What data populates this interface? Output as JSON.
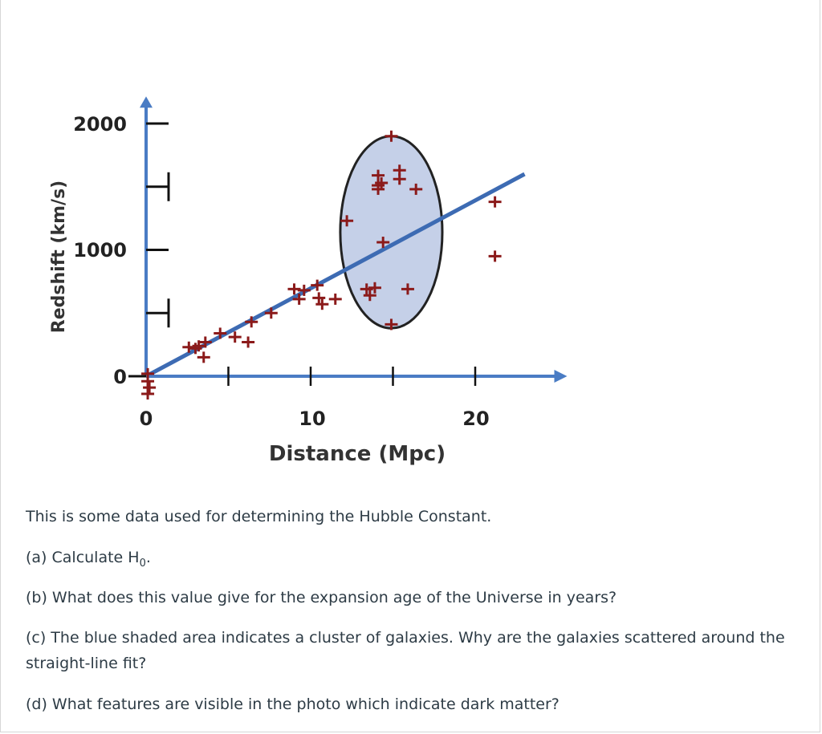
{
  "chart_data": {
    "type": "scatter",
    "xlabel": "Distance (Mpc)",
    "ylabel": "Redshift (km/s)",
    "xlim": [
      0,
      25
    ],
    "ylim": [
      0,
      2100
    ],
    "x_tick_labels": [
      "0",
      "10",
      "20"
    ],
    "y_tick_labels": [
      "0",
      "1000",
      "2000"
    ],
    "points": [
      {
        "x": 0.1,
        "y": 20
      },
      {
        "x": 0.1,
        "y": -40
      },
      {
        "x": 0.2,
        "y": -90
      },
      {
        "x": 0.1,
        "y": -140
      },
      {
        "x": 2.6,
        "y": 230
      },
      {
        "x": 3.0,
        "y": 220
      },
      {
        "x": 3.2,
        "y": 240
      },
      {
        "x": 3.6,
        "y": 270
      },
      {
        "x": 3.5,
        "y": 150
      },
      {
        "x": 4.5,
        "y": 340
      },
      {
        "x": 5.4,
        "y": 310
      },
      {
        "x": 6.4,
        "y": 430
      },
      {
        "x": 6.2,
        "y": 270
      },
      {
        "x": 7.6,
        "y": 500
      },
      {
        "x": 9.0,
        "y": 690
      },
      {
        "x": 9.3,
        "y": 610
      },
      {
        "x": 9.6,
        "y": 680
      },
      {
        "x": 10.4,
        "y": 720
      },
      {
        "x": 10.5,
        "y": 620
      },
      {
        "x": 10.7,
        "y": 570
      },
      {
        "x": 11.5,
        "y": 610
      },
      {
        "x": 12.2,
        "y": 1230
      },
      {
        "x": 13.4,
        "y": 690
      },
      {
        "x": 13.6,
        "y": 640
      },
      {
        "x": 13.9,
        "y": 700
      },
      {
        "x": 14.1,
        "y": 1590
      },
      {
        "x": 14.1,
        "y": 1510
      },
      {
        "x": 14.1,
        "y": 1480
      },
      {
        "x": 14.3,
        "y": 1530
      },
      {
        "x": 14.4,
        "y": 1060
      },
      {
        "x": 14.9,
        "y": 1900
      },
      {
        "x": 14.9,
        "y": 410
      },
      {
        "x": 15.4,
        "y": 1630
      },
      {
        "x": 15.4,
        "y": 1560
      },
      {
        "x": 15.9,
        "y": 690
      },
      {
        "x": 16.4,
        "y": 1480
      },
      {
        "x": 21.2,
        "y": 1380
      },
      {
        "x": 21.2,
        "y": 950
      }
    ],
    "fit_line": {
      "x": [
        0,
        23
      ],
      "y": [
        0,
        1600
      ]
    },
    "cluster_region": {
      "x_range": [
        11.8,
        18.0
      ],
      "y_range": [
        380,
        1900
      ]
    },
    "colors": {
      "points": "#8b1a1a",
      "fit": "#3d6bb3",
      "axes": "#4a7cc4",
      "cluster_fill": "#c5d0e8",
      "cluster_edge": "#222222"
    }
  },
  "question": {
    "intro": "This is some data used for determining the Hubble Constant.",
    "a_prefix": "(a) Calculate H",
    "a_subscript": "0",
    "a_suffix": ".",
    "b": "(b) What does this value give for the expansion age of the Universe in years?",
    "c": "(c) The blue shaded area indicates a cluster of galaxies. Why are the galaxies scattered around the straight-line fit?",
    "d": "(d) What features are visible in the photo which indicate dark matter?"
  }
}
